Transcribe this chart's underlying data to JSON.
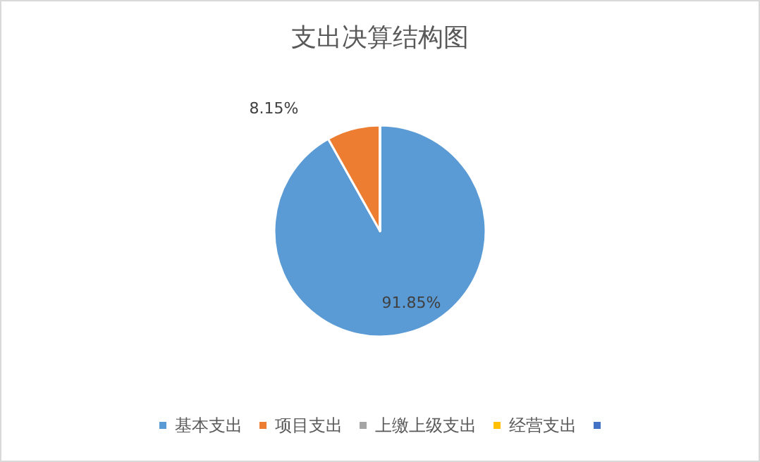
{
  "chart_data": {
    "type": "pie",
    "title": "支出决算结构图",
    "categories": [
      "基本支出",
      "项目支出",
      "上缴上级支出",
      "经营支出",
      null
    ],
    "values": [
      91.85,
      8.15,
      0,
      0,
      0
    ],
    "colors": [
      "#5b9bd5",
      "#ed7d31",
      "#a5a5a5",
      "#ffc000",
      "#4472c4"
    ],
    "value_labels": [
      "91.85%",
      "8.15%",
      null,
      null,
      null
    ],
    "legend": "bottom"
  }
}
